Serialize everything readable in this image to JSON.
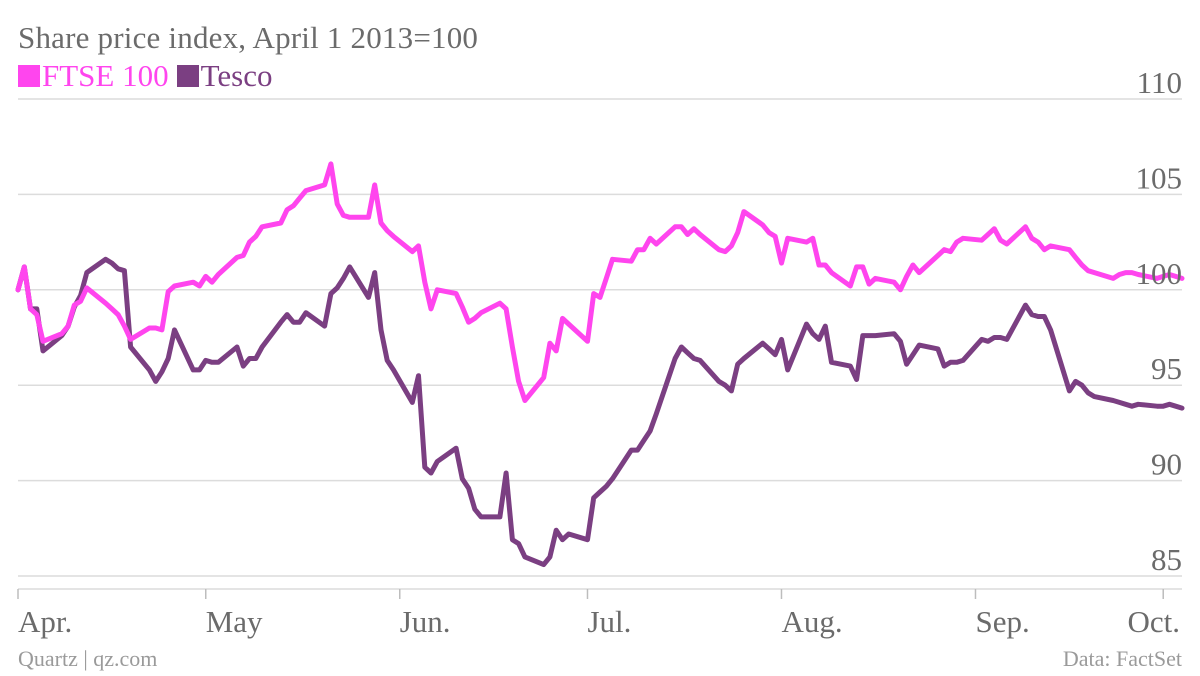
{
  "chart_data": {
    "type": "line",
    "title": "Share price index, April 1 2013=100",
    "source_left": "Quartz | qz.com",
    "source_right": "Data: FactSet",
    "ylim": [
      85,
      110
    ],
    "yticks": [
      85,
      90,
      95,
      100,
      105,
      110
    ],
    "grid": true,
    "legend_position": "top-left",
    "xlim": [
      "2013-04-01",
      "2013-10-04"
    ],
    "xticks": [
      {
        "label": "Apr.",
        "date": "2013-04-01"
      },
      {
        "label": "May",
        "date": "2013-05-01"
      },
      {
        "label": "Jun.",
        "date": "2013-06-01"
      },
      {
        "label": "Jul.",
        "date": "2013-07-01"
      },
      {
        "label": "Aug.",
        "date": "2013-08-01"
      },
      {
        "label": "Sep.",
        "date": "2013-09-01"
      },
      {
        "label": "Oct.",
        "date": "2013-10-01"
      }
    ],
    "series": [
      {
        "name": "FTSE 100",
        "color": "#ff45ee",
        "points": [
          [
            "2013-04-01",
            100.0
          ],
          [
            "2013-04-02",
            101.2
          ],
          [
            "2013-04-03",
            99.0
          ],
          [
            "2013-04-04",
            98.7
          ],
          [
            "2013-04-05",
            97.3
          ],
          [
            "2013-04-08",
            97.7
          ],
          [
            "2013-04-09",
            98.1
          ],
          [
            "2013-04-10",
            99.2
          ],
          [
            "2013-04-11",
            99.4
          ],
          [
            "2013-04-12",
            100.1
          ],
          [
            "2013-04-15",
            99.3
          ],
          [
            "2013-04-16",
            99.0
          ],
          [
            "2013-04-17",
            98.7
          ],
          [
            "2013-04-18",
            98.1
          ],
          [
            "2013-04-19",
            97.4
          ],
          [
            "2013-04-22",
            98.0
          ],
          [
            "2013-04-23",
            98.0
          ],
          [
            "2013-04-24",
            97.9
          ],
          [
            "2013-04-25",
            99.9
          ],
          [
            "2013-04-26",
            100.2
          ],
          [
            "2013-04-29",
            100.4
          ],
          [
            "2013-04-30",
            100.2
          ],
          [
            "2013-05-01",
            100.7
          ],
          [
            "2013-05-02",
            100.4
          ],
          [
            "2013-05-03",
            100.8
          ],
          [
            "2013-05-06",
            101.7
          ],
          [
            "2013-05-07",
            101.8
          ],
          [
            "2013-05-08",
            102.5
          ],
          [
            "2013-05-09",
            102.8
          ],
          [
            "2013-05-10",
            103.3
          ],
          [
            "2013-05-13",
            103.5
          ],
          [
            "2013-05-14",
            104.2
          ],
          [
            "2013-05-15",
            104.4
          ],
          [
            "2013-05-16",
            104.8
          ],
          [
            "2013-05-17",
            105.2
          ],
          [
            "2013-05-20",
            105.5
          ],
          [
            "2013-05-21",
            106.6
          ],
          [
            "2013-05-22",
            104.5
          ],
          [
            "2013-05-23",
            103.9
          ],
          [
            "2013-05-24",
            103.8
          ],
          [
            "2013-05-27",
            103.8
          ],
          [
            "2013-05-28",
            105.5
          ],
          [
            "2013-05-29",
            103.5
          ],
          [
            "2013-05-30",
            103.1
          ],
          [
            "2013-05-31",
            102.8
          ],
          [
            "2013-06-03",
            102.0
          ],
          [
            "2013-06-04",
            102.3
          ],
          [
            "2013-06-05",
            100.4
          ],
          [
            "2013-06-06",
            99.0
          ],
          [
            "2013-06-07",
            100.0
          ],
          [
            "2013-06-10",
            99.8
          ],
          [
            "2013-06-11",
            99.1
          ],
          [
            "2013-06-12",
            98.3
          ],
          [
            "2013-06-13",
            98.5
          ],
          [
            "2013-06-14",
            98.8
          ],
          [
            "2013-06-17",
            99.3
          ],
          [
            "2013-06-18",
            99.0
          ],
          [
            "2013-06-19",
            97.0
          ],
          [
            "2013-06-20",
            95.2
          ],
          [
            "2013-06-21",
            94.2
          ],
          [
            "2013-06-24",
            95.4
          ],
          [
            "2013-06-25",
            97.2
          ],
          [
            "2013-06-26",
            96.8
          ],
          [
            "2013-06-27",
            98.5
          ],
          [
            "2013-06-28",
            98.2
          ],
          [
            "2013-07-01",
            97.3
          ],
          [
            "2013-07-02",
            99.8
          ],
          [
            "2013-07-03",
            99.6
          ],
          [
            "2013-07-04",
            100.6
          ],
          [
            "2013-07-05",
            101.6
          ],
          [
            "2013-07-08",
            101.5
          ],
          [
            "2013-07-09",
            102.1
          ],
          [
            "2013-07-10",
            102.1
          ],
          [
            "2013-07-11",
            102.7
          ],
          [
            "2013-07-12",
            102.4
          ],
          [
            "2013-07-15",
            103.3
          ],
          [
            "2013-07-16",
            103.3
          ],
          [
            "2013-07-17",
            102.9
          ],
          [
            "2013-07-18",
            103.2
          ],
          [
            "2013-07-19",
            102.9
          ],
          [
            "2013-07-22",
            102.1
          ],
          [
            "2013-07-23",
            102.0
          ],
          [
            "2013-07-24",
            102.3
          ],
          [
            "2013-07-25",
            103.0
          ],
          [
            "2013-07-26",
            104.1
          ],
          [
            "2013-07-29",
            103.4
          ],
          [
            "2013-07-30",
            103.0
          ],
          [
            "2013-07-31",
            102.8
          ],
          [
            "2013-08-01",
            101.4
          ],
          [
            "2013-08-02",
            102.7
          ],
          [
            "2013-08-05",
            102.5
          ],
          [
            "2013-08-06",
            102.7
          ],
          [
            "2013-08-07",
            101.3
          ],
          [
            "2013-08-08",
            101.3
          ],
          [
            "2013-08-09",
            100.9
          ],
          [
            "2013-08-12",
            100.2
          ],
          [
            "2013-08-13",
            101.2
          ],
          [
            "2013-08-14",
            101.2
          ],
          [
            "2013-08-15",
            100.3
          ],
          [
            "2013-08-16",
            100.6
          ],
          [
            "2013-08-19",
            100.4
          ],
          [
            "2013-08-20",
            100.0
          ],
          [
            "2013-08-21",
            100.7
          ],
          [
            "2013-08-22",
            101.3
          ],
          [
            "2013-08-23",
            100.9
          ],
          [
            "2013-08-26",
            101.8
          ],
          [
            "2013-08-27",
            102.1
          ],
          [
            "2013-08-28",
            102.0
          ],
          [
            "2013-08-29",
            102.5
          ],
          [
            "2013-08-30",
            102.7
          ],
          [
            "2013-09-02",
            102.6
          ],
          [
            "2013-09-03",
            102.9
          ],
          [
            "2013-09-04",
            103.2
          ],
          [
            "2013-09-05",
            102.6
          ],
          [
            "2013-09-06",
            102.4
          ],
          [
            "2013-09-09",
            103.3
          ],
          [
            "2013-09-10",
            102.7
          ],
          [
            "2013-09-11",
            102.5
          ],
          [
            "2013-09-12",
            102.1
          ],
          [
            "2013-09-13",
            102.3
          ],
          [
            "2013-09-16",
            102.1
          ],
          [
            "2013-09-17",
            101.7
          ],
          [
            "2013-09-18",
            101.3
          ],
          [
            "2013-09-19",
            101.0
          ],
          [
            "2013-09-20",
            100.9
          ],
          [
            "2013-09-23",
            100.6
          ],
          [
            "2013-09-24",
            100.8
          ],
          [
            "2013-09-25",
            100.9
          ],
          [
            "2013-09-26",
            100.9
          ],
          [
            "2013-09-27",
            100.8
          ],
          [
            "2013-09-30",
            100.6
          ],
          [
            "2013-10-01",
            100.7
          ],
          [
            "2013-10-02",
            100.8
          ],
          [
            "2013-10-03",
            100.7
          ],
          [
            "2013-10-04",
            100.6
          ]
        ]
      },
      {
        "name": "Tesco",
        "color": "#7b3f82",
        "points": [
          [
            "2013-04-01",
            100.0
          ],
          [
            "2013-04-02",
            101.2
          ],
          [
            "2013-04-03",
            99.0
          ],
          [
            "2013-04-04",
            99.0
          ],
          [
            "2013-04-05",
            96.8
          ],
          [
            "2013-04-08",
            97.6
          ],
          [
            "2013-04-09",
            98.1
          ],
          [
            "2013-04-10",
            99.1
          ],
          [
            "2013-04-11",
            99.7
          ],
          [
            "2013-04-12",
            100.9
          ],
          [
            "2013-04-15",
            101.6
          ],
          [
            "2013-04-16",
            101.4
          ],
          [
            "2013-04-17",
            101.1
          ],
          [
            "2013-04-18",
            101.0
          ],
          [
            "2013-04-19",
            97.0
          ],
          [
            "2013-04-22",
            95.8
          ],
          [
            "2013-04-23",
            95.2
          ],
          [
            "2013-04-24",
            95.7
          ],
          [
            "2013-04-25",
            96.4
          ],
          [
            "2013-04-26",
            97.9
          ],
          [
            "2013-04-29",
            95.8
          ],
          [
            "2013-04-30",
            95.8
          ],
          [
            "2013-05-01",
            96.3
          ],
          [
            "2013-05-02",
            96.2
          ],
          [
            "2013-05-03",
            96.2
          ],
          [
            "2013-05-06",
            97.0
          ],
          [
            "2013-05-07",
            96.0
          ],
          [
            "2013-05-08",
            96.4
          ],
          [
            "2013-05-09",
            96.4
          ],
          [
            "2013-05-10",
            97.0
          ],
          [
            "2013-05-13",
            98.3
          ],
          [
            "2013-05-14",
            98.7
          ],
          [
            "2013-05-15",
            98.3
          ],
          [
            "2013-05-16",
            98.3
          ],
          [
            "2013-05-17",
            98.8
          ],
          [
            "2013-05-20",
            98.1
          ],
          [
            "2013-05-21",
            99.8
          ],
          [
            "2013-05-22",
            100.1
          ],
          [
            "2013-05-23",
            100.6
          ],
          [
            "2013-05-24",
            101.2
          ],
          [
            "2013-05-27",
            99.6
          ],
          [
            "2013-05-28",
            100.9
          ],
          [
            "2013-05-29",
            97.9
          ],
          [
            "2013-05-30",
            96.3
          ],
          [
            "2013-05-31",
            95.8
          ],
          [
            "2013-06-03",
            94.1
          ],
          [
            "2013-06-04",
            95.5
          ],
          [
            "2013-06-05",
            90.7
          ],
          [
            "2013-06-06",
            90.4
          ],
          [
            "2013-06-07",
            91.0
          ],
          [
            "2013-06-10",
            91.7
          ],
          [
            "2013-06-11",
            90.1
          ],
          [
            "2013-06-12",
            89.6
          ],
          [
            "2013-06-13",
            88.5
          ],
          [
            "2013-06-14",
            88.1
          ],
          [
            "2013-06-17",
            88.1
          ],
          [
            "2013-06-18",
            90.4
          ],
          [
            "2013-06-19",
            86.9
          ],
          [
            "2013-06-20",
            86.7
          ],
          [
            "2013-06-21",
            86.0
          ],
          [
            "2013-06-24",
            85.6
          ],
          [
            "2013-06-25",
            86.0
          ],
          [
            "2013-06-26",
            87.4
          ],
          [
            "2013-06-27",
            86.9
          ],
          [
            "2013-06-28",
            87.2
          ],
          [
            "2013-07-01",
            86.9
          ],
          [
            "2013-07-02",
            89.1
          ],
          [
            "2013-07-03",
            89.4
          ],
          [
            "2013-07-04",
            89.7
          ],
          [
            "2013-07-05",
            90.1
          ],
          [
            "2013-07-08",
            91.6
          ],
          [
            "2013-07-09",
            91.6
          ],
          [
            "2013-07-10",
            92.1
          ],
          [
            "2013-07-11",
            92.6
          ],
          [
            "2013-07-12",
            93.5
          ],
          [
            "2013-07-15",
            96.4
          ],
          [
            "2013-07-16",
            97.0
          ],
          [
            "2013-07-17",
            96.7
          ],
          [
            "2013-07-18",
            96.4
          ],
          [
            "2013-07-19",
            96.3
          ],
          [
            "2013-07-22",
            95.2
          ],
          [
            "2013-07-23",
            95.0
          ],
          [
            "2013-07-24",
            94.7
          ],
          [
            "2013-07-25",
            96.1
          ],
          [
            "2013-07-26",
            96.4
          ],
          [
            "2013-07-29",
            97.2
          ],
          [
            "2013-07-30",
            96.9
          ],
          [
            "2013-07-31",
            96.6
          ],
          [
            "2013-08-01",
            97.4
          ],
          [
            "2013-08-02",
            95.8
          ],
          [
            "2013-08-05",
            98.2
          ],
          [
            "2013-08-06",
            97.7
          ],
          [
            "2013-08-07",
            97.4
          ],
          [
            "2013-08-08",
            98.1
          ],
          [
            "2013-08-09",
            96.2
          ],
          [
            "2013-08-12",
            96.0
          ],
          [
            "2013-08-13",
            95.3
          ],
          [
            "2013-08-14",
            97.6
          ],
          [
            "2013-08-15",
            97.6
          ],
          [
            "2013-08-16",
            97.6
          ],
          [
            "2013-08-19",
            97.7
          ],
          [
            "2013-08-20",
            97.3
          ],
          [
            "2013-08-21",
            96.1
          ],
          [
            "2013-08-22",
            96.6
          ],
          [
            "2013-08-23",
            97.1
          ],
          [
            "2013-08-26",
            96.9
          ],
          [
            "2013-08-27",
            96.0
          ],
          [
            "2013-08-28",
            96.2
          ],
          [
            "2013-08-29",
            96.2
          ],
          [
            "2013-08-30",
            96.3
          ],
          [
            "2013-09-02",
            97.4
          ],
          [
            "2013-09-03",
            97.3
          ],
          [
            "2013-09-04",
            97.5
          ],
          [
            "2013-09-05",
            97.5
          ],
          [
            "2013-09-06",
            97.4
          ],
          [
            "2013-09-09",
            99.2
          ],
          [
            "2013-09-10",
            98.7
          ],
          [
            "2013-09-11",
            98.6
          ],
          [
            "2013-09-12",
            98.6
          ],
          [
            "2013-09-13",
            97.9
          ],
          [
            "2013-09-16",
            94.7
          ],
          [
            "2013-09-17",
            95.2
          ],
          [
            "2013-09-18",
            95.0
          ],
          [
            "2013-09-19",
            94.6
          ],
          [
            "2013-09-20",
            94.4
          ],
          [
            "2013-09-23",
            94.2
          ],
          [
            "2013-09-24",
            94.1
          ],
          [
            "2013-09-25",
            94.0
          ],
          [
            "2013-09-26",
            93.9
          ],
          [
            "2013-09-27",
            94.0
          ],
          [
            "2013-09-30",
            93.9
          ],
          [
            "2013-10-01",
            93.9
          ],
          [
            "2013-10-02",
            94.0
          ],
          [
            "2013-10-03",
            93.9
          ],
          [
            "2013-10-04",
            93.8
          ]
        ]
      }
    ]
  }
}
